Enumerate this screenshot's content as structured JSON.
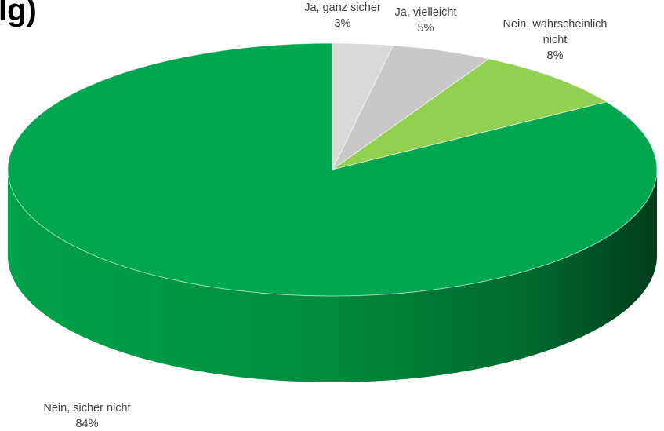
{
  "chart_data": {
    "type": "pie",
    "title": "lg)",
    "categories": [
      "Ja, ganz sicher",
      "Ja, vielleicht",
      "Nein, wahrscheinlich nicht",
      "Nein, sicher nicht"
    ],
    "values": [
      3,
      5,
      8,
      84
    ],
    "value_labels": [
      "3%",
      "5%",
      "8%",
      "84%"
    ],
    "label_lines": [
      [
        "Ja, ganz sicher"
      ],
      [
        "Ja, vielleicht"
      ],
      [
        "Nein, wahrscheinlich",
        "nicht"
      ],
      [
        "Nein, sicher nicht"
      ]
    ],
    "colors": [
      "#d9d9d9",
      "#c8c8c8",
      "#92d050",
      "#00a650"
    ],
    "style": "3d-pie",
    "legend": "none"
  }
}
